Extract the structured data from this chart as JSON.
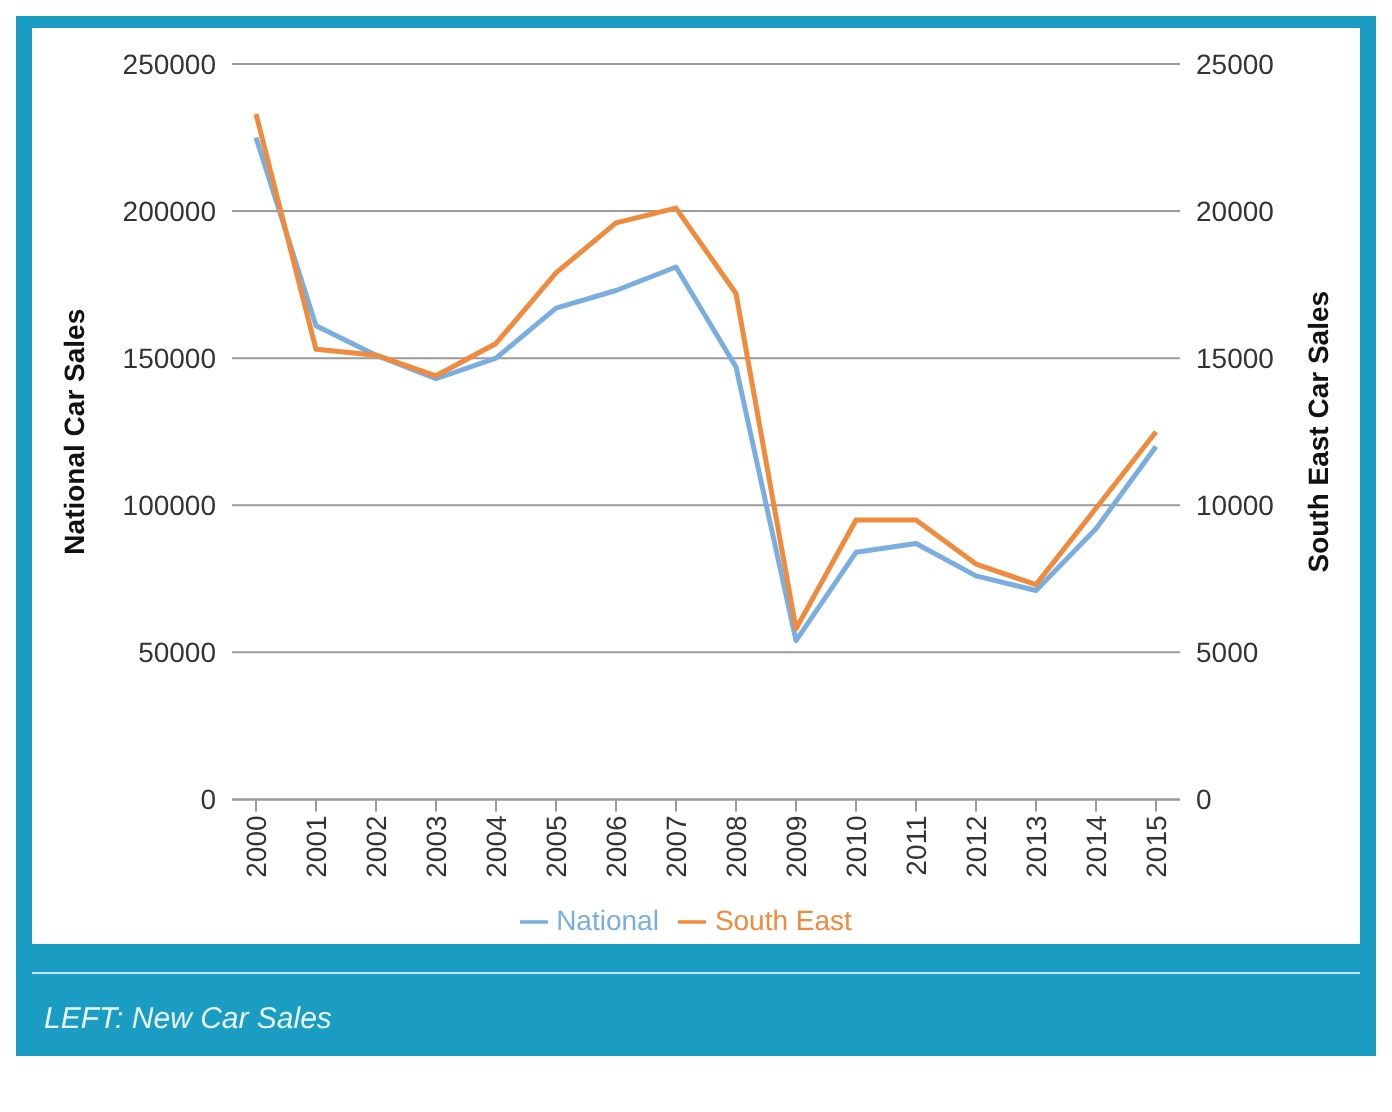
{
  "chart_data": {
    "type": "line",
    "categories": [
      "2000",
      "2001",
      "2002",
      "2003",
      "2004",
      "2005",
      "2006",
      "2007",
      "2008",
      "2009",
      "2010",
      "2011",
      "2012",
      "2013",
      "2014",
      "2015"
    ],
    "series": [
      {
        "name": "National",
        "color": "#7aaee0",
        "values": [
          225000,
          161000,
          151000,
          143000,
          150000,
          167000,
          173000,
          181000,
          147000,
          54000,
          84000,
          87000,
          76000,
          71000,
          92000,
          120000
        ]
      },
      {
        "name": "South East",
        "color": "#f08a3c",
        "axis": "y2",
        "values": [
          23300,
          15300,
          15100,
          14400,
          15500,
          17900,
          19600,
          20100,
          17200,
          5800,
          9500,
          9500,
          8000,
          7300,
          9900,
          12500
        ]
      }
    ],
    "ylabel": "National Car Sales",
    "y2label": "South East Car Sales",
    "ylim": [
      0,
      250000
    ],
    "yticks": [
      0,
      50000,
      100000,
      150000,
      200000,
      250000
    ],
    "y2lim": [
      0,
      25000
    ],
    "y2ticks": [
      0,
      5000,
      10000,
      15000,
      20000,
      25000
    ],
    "grid": "y",
    "legend": "bottom",
    "marker": "none",
    "line_style": "solid",
    "annotations": [
      "LEFT: New Car Sales"
    ]
  }
}
